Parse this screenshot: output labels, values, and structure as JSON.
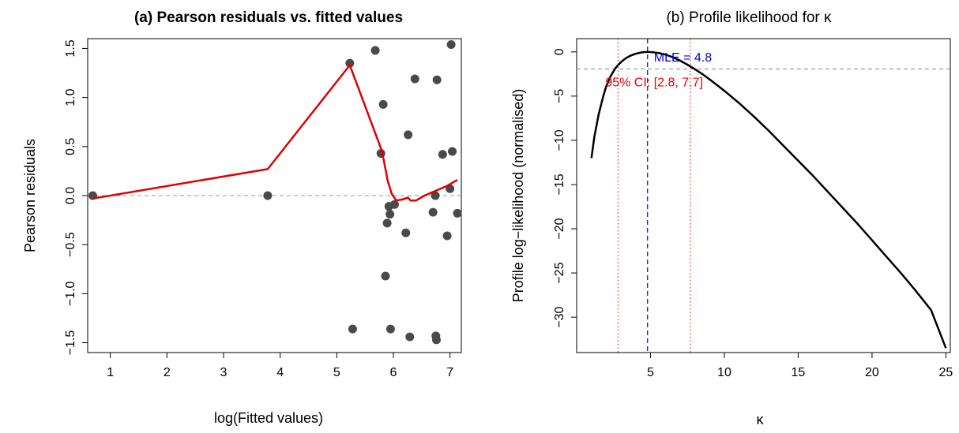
{
  "chart_data": [
    {
      "type": "scatter",
      "title": "(a) Pearson residuals vs. fitted values",
      "xlabel": "log(Fitted values)",
      "ylabel": "Pearson residuals",
      "xlim": [
        0.6,
        7.2
      ],
      "ylim": [
        -1.6,
        1.6
      ],
      "x_ticks": [
        1,
        2,
        3,
        4,
        5,
        6,
        7
      ],
      "x_tick_labels": [
        "1",
        "2",
        "3",
        "4",
        "5",
        "6",
        "7"
      ],
      "y_ticks": [
        -1.5,
        -1.0,
        -0.5,
        0.0,
        0.5,
        1.0,
        1.5
      ],
      "y_tick_labels": [
        "−1.5",
        "−1.0",
        "−0.5",
        "0.0",
        "0.5",
        "1.0",
        "1.5"
      ],
      "reference_line_y": 0,
      "grid": false,
      "colors": {
        "points": "#4a4a4a",
        "smooth": "#e00000",
        "reference": "#999999"
      },
      "points": [
        {
          "x": 0.69,
          "y": 0.0
        },
        {
          "x": 3.78,
          "y": 0.0
        },
        {
          "x": 5.23,
          "y": 1.35
        },
        {
          "x": 5.28,
          "y": -1.36
        },
        {
          "x": 5.68,
          "y": 1.48
        },
        {
          "x": 5.78,
          "y": 0.43
        },
        {
          "x": 5.82,
          "y": 0.93
        },
        {
          "x": 5.86,
          "y": -0.82
        },
        {
          "x": 5.89,
          "y": -0.28
        },
        {
          "x": 5.92,
          "y": -0.11
        },
        {
          "x": 5.94,
          "y": -0.19
        },
        {
          "x": 5.95,
          "y": -1.36
        },
        {
          "x": 6.02,
          "y": -0.09
        },
        {
          "x": 6.22,
          "y": -0.38
        },
        {
          "x": 6.26,
          "y": 0.62
        },
        {
          "x": 6.29,
          "y": -1.44
        },
        {
          "x": 6.38,
          "y": 1.19
        },
        {
          "x": 6.7,
          "y": -0.17
        },
        {
          "x": 6.74,
          "y": 0.0
        },
        {
          "x": 6.75,
          "y": -1.43
        },
        {
          "x": 6.76,
          "y": -1.47
        },
        {
          "x": 6.77,
          "y": 1.18
        },
        {
          "x": 6.87,
          "y": 0.42
        },
        {
          "x": 6.95,
          "y": -0.41
        },
        {
          "x": 7.0,
          "y": 0.07
        },
        {
          "x": 7.02,
          "y": 1.54
        },
        {
          "x": 7.04,
          "y": 0.45
        },
        {
          "x": 7.13,
          "y": -0.18
        }
      ],
      "smooth_line": {
        "x": [
          0.69,
          3.78,
          5.23,
          5.8,
          5.9,
          5.97,
          6.05,
          6.15,
          6.26,
          6.3,
          6.4,
          6.55,
          6.75,
          6.95,
          7.13
        ],
        "y": [
          -0.03,
          0.27,
          1.33,
          0.45,
          0.15,
          0.02,
          -0.05,
          -0.04,
          -0.02,
          -0.05,
          -0.05,
          0.0,
          0.05,
          0.1,
          0.16
        ]
      }
    },
    {
      "type": "line",
      "title": "(b) Profile likelihood for κ",
      "xlabel": "κ",
      "ylabel": "Profile log−likelihood (normalised)",
      "xlim": [
        0,
        25.3
      ],
      "ylim": [
        -34,
        1.5
      ],
      "x_ticks": [
        5,
        10,
        15,
        20,
        25
      ],
      "x_tick_labels": [
        "5",
        "10",
        "15",
        "20",
        "25"
      ],
      "y_ticks": [
        0,
        -5,
        -10,
        -15,
        -20,
        -25,
        -30
      ],
      "y_tick_labels": [
        "0",
        "−5",
        "−10",
        "−15",
        "−20",
        "−25",
        "−30"
      ],
      "grid": false,
      "colors": {
        "curve": "#000000",
        "mle": "#0000dd",
        "ci": "#ee0000",
        "threshold": "#888888"
      },
      "curve": {
        "x": [
          1.0,
          1.2,
          1.5,
          1.8,
          2.0,
          2.3,
          2.6,
          2.8,
          3.0,
          3.3,
          3.6,
          4.0,
          4.4,
          4.8,
          5.2,
          5.6,
          6.0,
          6.5,
          7.0,
          7.5,
          8.0,
          8.5,
          9.0,
          10.0,
          11.0,
          12.0,
          13.0,
          14.0,
          15.0,
          16.0,
          17.0,
          18.0,
          19.0,
          20.0,
          21.0,
          22.0,
          23.0,
          24.0,
          25.0
        ],
        "y": [
          -12.0,
          -9.6,
          -7.0,
          -5.0,
          -3.9,
          -2.75,
          -1.9,
          -1.5,
          -1.15,
          -0.75,
          -0.45,
          -0.2,
          -0.05,
          0.0,
          -0.04,
          -0.14,
          -0.3,
          -0.6,
          -0.98,
          -1.44,
          -1.95,
          -2.5,
          -3.1,
          -4.4,
          -5.8,
          -7.3,
          -8.9,
          -10.6,
          -12.3,
          -14.0,
          -15.8,
          -17.6,
          -19.4,
          -21.3,
          -23.2,
          -25.1,
          -27.1,
          -29.2,
          -33.5
        ]
      },
      "mle": 4.8,
      "mle_label": "MLE = 4.8",
      "ci": [
        2.8,
        7.7
      ],
      "ci_label": "95% CI: [2.8, 7.7]",
      "threshold_y": -1.92
    }
  ]
}
